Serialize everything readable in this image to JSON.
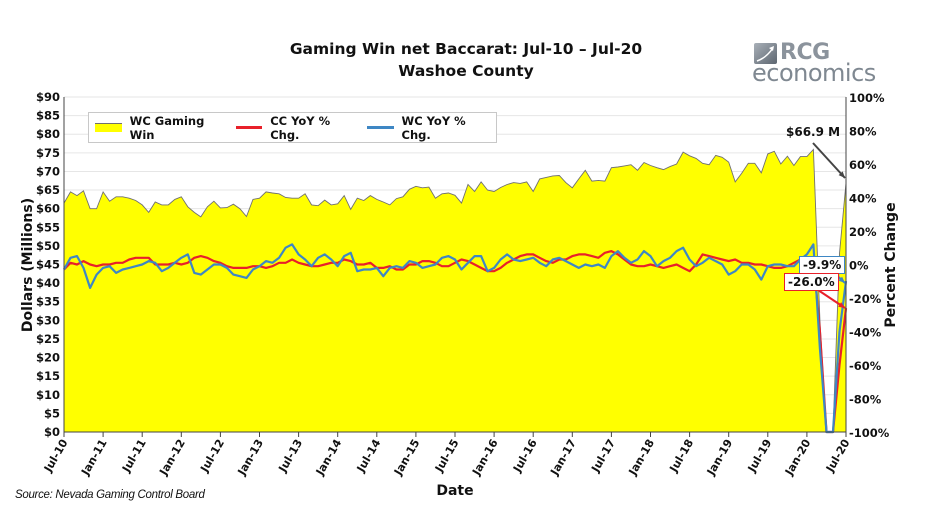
{
  "title": {
    "line1": "Gaming Win net Baccarat: Jul-10 – Jul-20",
    "line2": "Washoe County"
  },
  "logo": {
    "text_top": "RCG",
    "text_bottom": "economics"
  },
  "source": "Source: Nevada Gaming Control Board",
  "colors": {
    "area_fill": "#ffff00",
    "area_line": "#707070",
    "cc_line": "#e8202a",
    "wc_line": "#3e87c4",
    "grid": "#e6e6e6"
  },
  "chart_data": {
    "type": "area+line",
    "title": "Gaming Win net Baccarat: Jul-10 – Jul-20 / Washoe County",
    "xlabel": "Date",
    "ylabel": "Dollars (Millions)",
    "y2label": "Percent Change",
    "ylim": [
      0,
      90
    ],
    "y2lim": [
      -100,
      100
    ],
    "x_start": "Jul-10",
    "x_end": "Jul-20",
    "x_frequency": "monthly",
    "x_tick_labels": [
      "Jul-10",
      "Jan-11",
      "Jul-11",
      "Jan-12",
      "Jul-12",
      "Jan-13",
      "Jul-13",
      "Jan-14",
      "Jul-14",
      "Jan-15",
      "Jul-15",
      "Jan-16",
      "Jul-16",
      "Jan-17",
      "Jul-17",
      "Jan-18",
      "Jul-18",
      "Jan-19",
      "Jul-19",
      "Jan-20",
      "Jul-20"
    ],
    "y_tick_labels": [
      "$0",
      "$5",
      "$10",
      "$15",
      "$20",
      "$25",
      "$30",
      "$35",
      "$40",
      "$45",
      "$50",
      "$55",
      "$60",
      "$65",
      "$70",
      "$75",
      "$80",
      "$85",
      "$90"
    ],
    "y2_tick_labels": [
      "-100%",
      "-80%",
      "-60%",
      "-40%",
      "-20%",
      "0%",
      "20%",
      "40%",
      "60%",
      "80%",
      "100%"
    ],
    "grid": true,
    "legend_position": "top-left",
    "series": [
      {
        "name": "WC Gaming Win",
        "type": "area",
        "axis": "left",
        "values": [
          61.5,
          64.5,
          63.5,
          64.8,
          60,
          60,
          64.5,
          62,
          63.2,
          63.2,
          62.8,
          62.2,
          61,
          59,
          61.8,
          61,
          61,
          62.5,
          63.2,
          60.5,
          59,
          57.8,
          60.5,
          62,
          60.2,
          60.3,
          61.2,
          60,
          57.9,
          62.5,
          62.8,
          64.5,
          64.2,
          64,
          63,
          62.8,
          62.8,
          64,
          61,
          60.8,
          62.3,
          61,
          61.3,
          63.5,
          59.8,
          62.8,
          62.2,
          63.5,
          62.5,
          61.8,
          61,
          62.7,
          63.2,
          65.2,
          66,
          65.6,
          65.8,
          62.8,
          64,
          64.2,
          63.6,
          61.5,
          66.5,
          64.6,
          67.2,
          65,
          64.6,
          65.7,
          66.5,
          67,
          66.8,
          67.2,
          64.6,
          68,
          68.4,
          68.8,
          68.9,
          67,
          65.6,
          68,
          70.3,
          67.4,
          67.6,
          67.4,
          71,
          71.2,
          71.5,
          71.8,
          70.3,
          72.4,
          71.6,
          71,
          70.5,
          71.3,
          72,
          75.2,
          74.2,
          73.5,
          72.2,
          71.8,
          74.3,
          73.8,
          72.5,
          67.2,
          69.5,
          72.2,
          72.2,
          69.6,
          74.7,
          75.4,
          72,
          74.1,
          71.6,
          74,
          74,
          75.9,
          30,
          0,
          0,
          48,
          66.9
        ]
      },
      {
        "name": "CC YoY % Chg.",
        "type": "line",
        "axis": "right",
        "values": [
          -3,
          1,
          0,
          2,
          0,
          -1,
          0,
          0,
          1,
          1,
          3,
          4,
          4,
          4,
          0,
          0,
          0,
          1,
          0,
          1,
          4,
          5,
          4,
          2,
          1,
          -1,
          -2,
          -2,
          -2,
          -1,
          -1,
          -2,
          -1,
          1,
          1,
          3,
          1,
          0,
          -1,
          -1,
          0,
          1,
          1,
          3,
          2,
          0,
          0,
          1,
          -2,
          -2,
          -1,
          -3,
          -3,
          0,
          0,
          2,
          2,
          1,
          -1,
          -1,
          1,
          3,
          2,
          0,
          -2,
          -4,
          -4,
          -2,
          1,
          3,
          5,
          6,
          6,
          4,
          2,
          1,
          3,
          3,
          5,
          6,
          6,
          5,
          4,
          7,
          8,
          6,
          3,
          0,
          -1,
          -1,
          0,
          -1,
          -2,
          -1,
          0,
          -2,
          -4,
          0,
          6,
          5,
          4,
          3,
          2,
          3,
          1,
          1,
          0,
          0,
          -1,
          -2,
          -2,
          -1,
          1,
          3,
          2,
          4,
          -40,
          -100,
          -100,
          -60,
          -26
        ]
      },
      {
        "name": "WC YoY % Chg.",
        "type": "line",
        "axis": "right",
        "values": [
          -3,
          4,
          5,
          -2,
          -14,
          -6,
          -2,
          -1,
          -5,
          -3,
          -2,
          -1,
          0,
          2,
          1,
          -4,
          -2,
          1,
          4,
          6,
          -5,
          -6,
          -3,
          0,
          0,
          -2,
          -6,
          -7,
          -8,
          -3,
          -1,
          2,
          1,
          4,
          10,
          12,
          6,
          3,
          -1,
          4,
          6,
          3,
          -1,
          5,
          7,
          -4,
          -3,
          -3,
          -2,
          -7,
          -2,
          -1,
          -2,
          2,
          1,
          -2,
          -1,
          0,
          4,
          5,
          3,
          -3,
          1,
          5,
          5,
          -4,
          -2,
          3,
          6,
          3,
          2,
          3,
          4,
          1,
          -1,
          3,
          4,
          2,
          0,
          -2,
          0,
          -1,
          0,
          -2,
          5,
          8,
          4,
          1,
          3,
          8,
          5,
          -1,
          2,
          4,
          8,
          10,
          3,
          -1,
          1,
          4,
          2,
          0,
          -6,
          -4,
          0,
          0,
          -3,
          -9,
          -1,
          0,
          0,
          -1,
          -1,
          3,
          6,
          12,
          -50,
          -100,
          -100,
          -40,
          -9.9
        ]
      }
    ],
    "annotations": {
      "win_last": "$66.9 M",
      "wc_last": "-9.9%",
      "cc_last": "-26.0%"
    }
  }
}
